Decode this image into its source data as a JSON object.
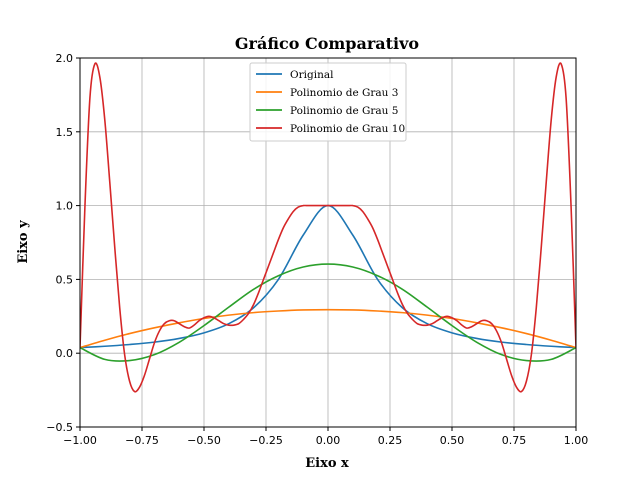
{
  "chart_data": {
    "type": "line",
    "title": "Gráfico Comparativo",
    "xlabel": "Eixo x",
    "ylabel": "Eixo y",
    "xlim": [
      -1.0,
      1.0
    ],
    "ylim": [
      -0.5,
      2.0
    ],
    "xticks": [
      -1.0,
      -0.75,
      -0.5,
      -0.25,
      0.0,
      0.25,
      0.5,
      0.75,
      1.0
    ],
    "xtick_labels": [
      "−1.00",
      "−0.75",
      "−0.50",
      "−0.25",
      "0.00",
      "0.25",
      "0.50",
      "0.75",
      "1.00"
    ],
    "yticks": [
      -0.5,
      0.0,
      0.5,
      1.0,
      1.5,
      2.0
    ],
    "ytick_labels": [
      "−0.5",
      "0.0",
      "0.5",
      "1.0",
      "1.5",
      "2.0"
    ],
    "grid": true,
    "legend_position": "top-center",
    "series": [
      {
        "name": "Original",
        "color": "#1f77b4",
        "x": [
          -1.0,
          -0.9,
          -0.8,
          -0.7,
          -0.6,
          -0.5,
          -0.4,
          -0.3,
          -0.2,
          -0.1,
          0.0,
          0.1,
          0.2,
          0.3,
          0.4,
          0.5,
          0.6,
          0.7,
          0.8,
          0.9,
          1.0
        ],
        "y": [
          0.038,
          0.047,
          0.059,
          0.075,
          0.1,
          0.138,
          0.2,
          0.308,
          0.5,
          0.8,
          1.0,
          0.8,
          0.5,
          0.308,
          0.2,
          0.138,
          0.1,
          0.075,
          0.059,
          0.047,
          0.038
        ]
      },
      {
        "name": "Polinomio de Grau 3",
        "color": "#ff7f0e",
        "x": [
          -1.0,
          -0.9,
          -0.8,
          -0.7,
          -0.6,
          -0.5,
          -0.4,
          -0.3,
          -0.2,
          -0.1,
          0.0,
          0.1,
          0.2,
          0.3,
          0.4,
          0.5,
          0.6,
          0.7,
          0.8,
          0.9,
          1.0
        ],
        "y": [
          0.038,
          0.088,
          0.133,
          0.172,
          0.206,
          0.235,
          0.258,
          0.275,
          0.286,
          0.293,
          0.295,
          0.293,
          0.286,
          0.275,
          0.258,
          0.235,
          0.206,
          0.172,
          0.133,
          0.088,
          0.038
        ]
      },
      {
        "name": "Polinomio de Grau 5",
        "color": "#2ca02c",
        "x": [
          -1.0,
          -0.9,
          -0.8,
          -0.7,
          -0.6,
          -0.5,
          -0.4,
          -0.3,
          -0.2,
          -0.1,
          0.0,
          0.1,
          0.2,
          0.3,
          0.4,
          0.5,
          0.6,
          0.7,
          0.8,
          0.9,
          1.0
        ],
        "y": [
          0.038,
          -0.042,
          -0.05,
          -0.01,
          0.074,
          0.187,
          0.312,
          0.433,
          0.525,
          0.584,
          0.604,
          0.584,
          0.525,
          0.433,
          0.312,
          0.187,
          0.074,
          -0.01,
          -0.05,
          -0.042,
          0.038
        ]
      },
      {
        "name": "Polinomio de Grau 10",
        "color": "#d62728",
        "x": [
          -1.0,
          -0.98,
          -0.96,
          -0.94,
          -0.92,
          -0.9,
          -0.88,
          -0.86,
          -0.84,
          -0.82,
          -0.8,
          -0.78,
          -0.76,
          -0.74,
          -0.72,
          -0.7,
          -0.68,
          -0.66,
          -0.64,
          -0.62,
          -0.6,
          -0.58,
          -0.56,
          -0.54,
          -0.52,
          -0.5,
          -0.48,
          -0.46,
          -0.44,
          -0.42,
          -0.4,
          -0.38,
          -0.36,
          -0.34,
          -0.32,
          -0.3,
          -0.28,
          -0.26,
          -0.24,
          -0.22,
          -0.2,
          -0.18,
          -0.16,
          -0.14,
          -0.12,
          -0.1,
          -0.08,
          -0.06,
          -0.04,
          -0.02,
          0.0,
          0.02,
          0.04,
          0.06,
          0.08,
          0.1,
          0.12,
          0.14,
          0.16,
          0.18,
          0.2,
          0.22,
          0.24,
          0.26,
          0.28,
          0.3,
          0.32,
          0.34,
          0.36,
          0.38,
          0.4,
          0.42,
          0.44,
          0.46,
          0.48,
          0.5,
          0.52,
          0.54,
          0.56,
          0.58,
          0.6,
          0.62,
          0.64,
          0.66,
          0.68,
          0.7,
          0.72,
          0.74,
          0.76,
          0.78,
          0.8,
          0.82,
          0.84,
          0.86,
          0.88,
          0.9,
          0.92,
          0.94,
          0.96,
          0.98,
          1.0
        ],
        "y": [
          0.038,
          1.0,
          1.73,
          1.96,
          1.87,
          1.58,
          1.16,
          0.72,
          0.31,
          -0.01,
          -0.19,
          -0.26,
          -0.23,
          -0.15,
          -0.04,
          0.07,
          0.15,
          0.2,
          0.22,
          0.22,
          0.2,
          0.18,
          0.17,
          0.19,
          0.22,
          0.24,
          0.25,
          0.24,
          0.22,
          0.2,
          0.19,
          0.19,
          0.2,
          0.23,
          0.27,
          0.33,
          0.41,
          0.5,
          0.59,
          0.68,
          0.77,
          0.85,
          0.91,
          0.96,
          0.99,
          1.0,
          1.0,
          1.0,
          1.0,
          1.0,
          1.0,
          1.0,
          1.0,
          1.0,
          1.0,
          1.0,
          0.99,
          0.96,
          0.91,
          0.85,
          0.77,
          0.68,
          0.59,
          0.5,
          0.41,
          0.33,
          0.27,
          0.23,
          0.2,
          0.19,
          0.19,
          0.2,
          0.22,
          0.24,
          0.25,
          0.24,
          0.22,
          0.19,
          0.17,
          0.18,
          0.2,
          0.22,
          0.22,
          0.2,
          0.15,
          0.07,
          -0.04,
          -0.15,
          -0.23,
          -0.26,
          -0.19,
          -0.01,
          0.31,
          0.72,
          1.16,
          1.58,
          1.87,
          1.96,
          1.73,
          1.0,
          0.038
        ]
      }
    ]
  }
}
